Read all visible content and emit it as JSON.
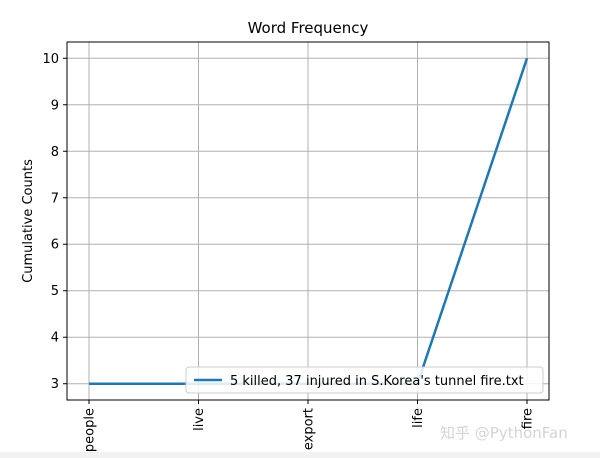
{
  "chart_data": {
    "type": "line",
    "title": "Word Frequency",
    "xlabel": "",
    "ylabel": "Cumulative Counts",
    "categories": [
      "people",
      "live",
      "export",
      "life",
      "fire"
    ],
    "series": [
      {
        "name": "5 killed, 37 injured in S.Korea's tunnel fire.txt",
        "values": [
          3,
          3,
          3,
          3,
          10
        ]
      }
    ],
    "ylim": [
      2.65,
      10.35
    ],
    "yticks": [
      3,
      4,
      5,
      6,
      7,
      8,
      9,
      10
    ],
    "grid": true,
    "legend_position": "lower-right",
    "line_color": "#1f77b4"
  },
  "watermark": "知乎 @PythonFan"
}
